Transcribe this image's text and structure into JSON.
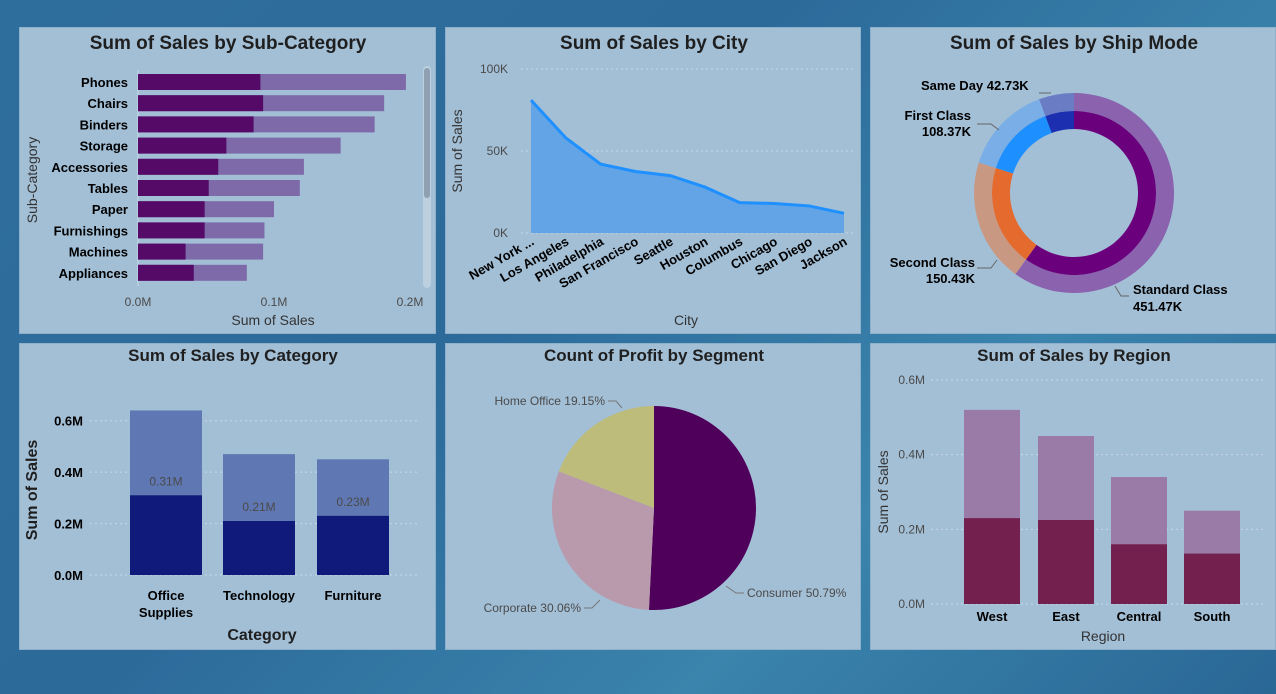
{
  "chart_data": [
    {
      "id": "subcat",
      "type": "bar",
      "orientation": "horizontal",
      "title": "Sum of Sales by Sub-Category",
      "xlabel": "Sum of Sales",
      "ylabel": "Sub-Category",
      "categories": [
        "Phones",
        "Chairs",
        "Binders",
        "Storage",
        "Accessories",
        "Tables",
        "Paper",
        "Furnishings",
        "Machines",
        "Appliances"
      ],
      "series": [
        {
          "values": [
            0.197,
            0.181,
            0.174,
            0.149,
            0.122,
            0.119,
            0.1,
            0.093,
            0.092,
            0.08
          ]
        },
        {
          "values": [
            0.09,
            0.092,
            0.085,
            0.065,
            0.059,
            0.052,
            0.049,
            0.049,
            0.035,
            0.041
          ]
        }
      ],
      "xlim": [
        0,
        0.2
      ],
      "xticks": [
        "0.0M",
        "0.1M",
        "0.2M"
      ],
      "colors": [
        "#7e6aa8",
        "#540a66"
      ]
    },
    {
      "id": "city",
      "type": "area",
      "title": "Sum of Sales by City",
      "xlabel": "City",
      "ylabel": "Sum of Sales",
      "categories": [
        "New York ...",
        "Los Angeles",
        "Philadelphia",
        "San Francisco",
        "Seattle",
        "Houston",
        "Columbus",
        "Chicago",
        "San Diego",
        "Jackson"
      ],
      "values": [
        81000,
        58000,
        42000,
        37500,
        35000,
        28000,
        18500,
        18000,
        16500,
        12000
      ],
      "ylim": [
        0,
        100000
      ],
      "yticks": [
        "0K",
        "50K",
        "100K"
      ],
      "colors": [
        "#1e90ff",
        "#62a4e6"
      ]
    },
    {
      "id": "shipmode",
      "type": "pie",
      "variant": "donut",
      "title": "Sum of Sales by Ship Mode",
      "labels": [
        "Standard Class",
        "Second Class",
        "First Class",
        "Same Day"
      ],
      "values": [
        451.47,
        150.43,
        108.37,
        42.73
      ],
      "value_labels": [
        "451.47K",
        "150.43K",
        "108.37K",
        "42.73K"
      ],
      "label_texts": [
        "Same Day 42.73K",
        "First Class",
        "108.37K",
        "Second Class",
        "150.43K",
        "Standard Class",
        "451.47K"
      ],
      "colors": [
        "#6b007d",
        "#e56a2e",
        "#1e8fff",
        "#1b2fb0"
      ],
      "outer_colors": [
        "#8a62ad",
        "#c99882",
        "#79aee6",
        "#6a7cc4"
      ]
    },
    {
      "id": "category",
      "type": "bar",
      "title": "Sum of Sales by Category",
      "xlabel": "Category",
      "ylabel": "Sum of Sales",
      "categories": [
        [
          "Office",
          "Supplies"
        ],
        [
          "Technology"
        ],
        [
          "Furniture"
        ]
      ],
      "series": [
        {
          "values": [
            0.64,
            0.47,
            0.45
          ]
        },
        {
          "values": [
            0.31,
            0.21,
            0.23
          ]
        }
      ],
      "data_labels": [
        "0.31M",
        "0.21M",
        "0.23M"
      ],
      "ylim": [
        0,
        0.7
      ],
      "yticks": [
        "0.0M",
        "0.2M",
        "0.4M",
        "0.6M"
      ],
      "colors": [
        "#5f78b3",
        "#0f1a7a"
      ]
    },
    {
      "id": "segment",
      "type": "pie",
      "title": "Count of Profit by Segment",
      "labels": [
        "Consumer",
        "Corporate",
        "Home Office"
      ],
      "values": [
        50.79,
        30.06,
        19.15
      ],
      "label_texts": [
        "Consumer 50.79%",
        "Corporate 30.06%",
        "Home Office 19.15%"
      ],
      "colors": [
        "#4e005a",
        "#b99aac",
        "#bdbc7b"
      ]
    },
    {
      "id": "region",
      "type": "bar",
      "title": "Sum of Sales by Region",
      "xlabel": "Region",
      "ylabel": "Sum of Sales",
      "categories": [
        "West",
        "East",
        "Central",
        "South"
      ],
      "series": [
        {
          "values": [
            0.52,
            0.45,
            0.34,
            0.25
          ]
        },
        {
          "values": [
            0.23,
            0.225,
            0.16,
            0.135
          ]
        }
      ],
      "ylim": [
        0,
        0.6
      ],
      "yticks": [
        "0.0M",
        "0.2M",
        "0.4M",
        "0.6M"
      ],
      "colors": [
        "#9a7aa6",
        "#74204e"
      ]
    }
  ]
}
